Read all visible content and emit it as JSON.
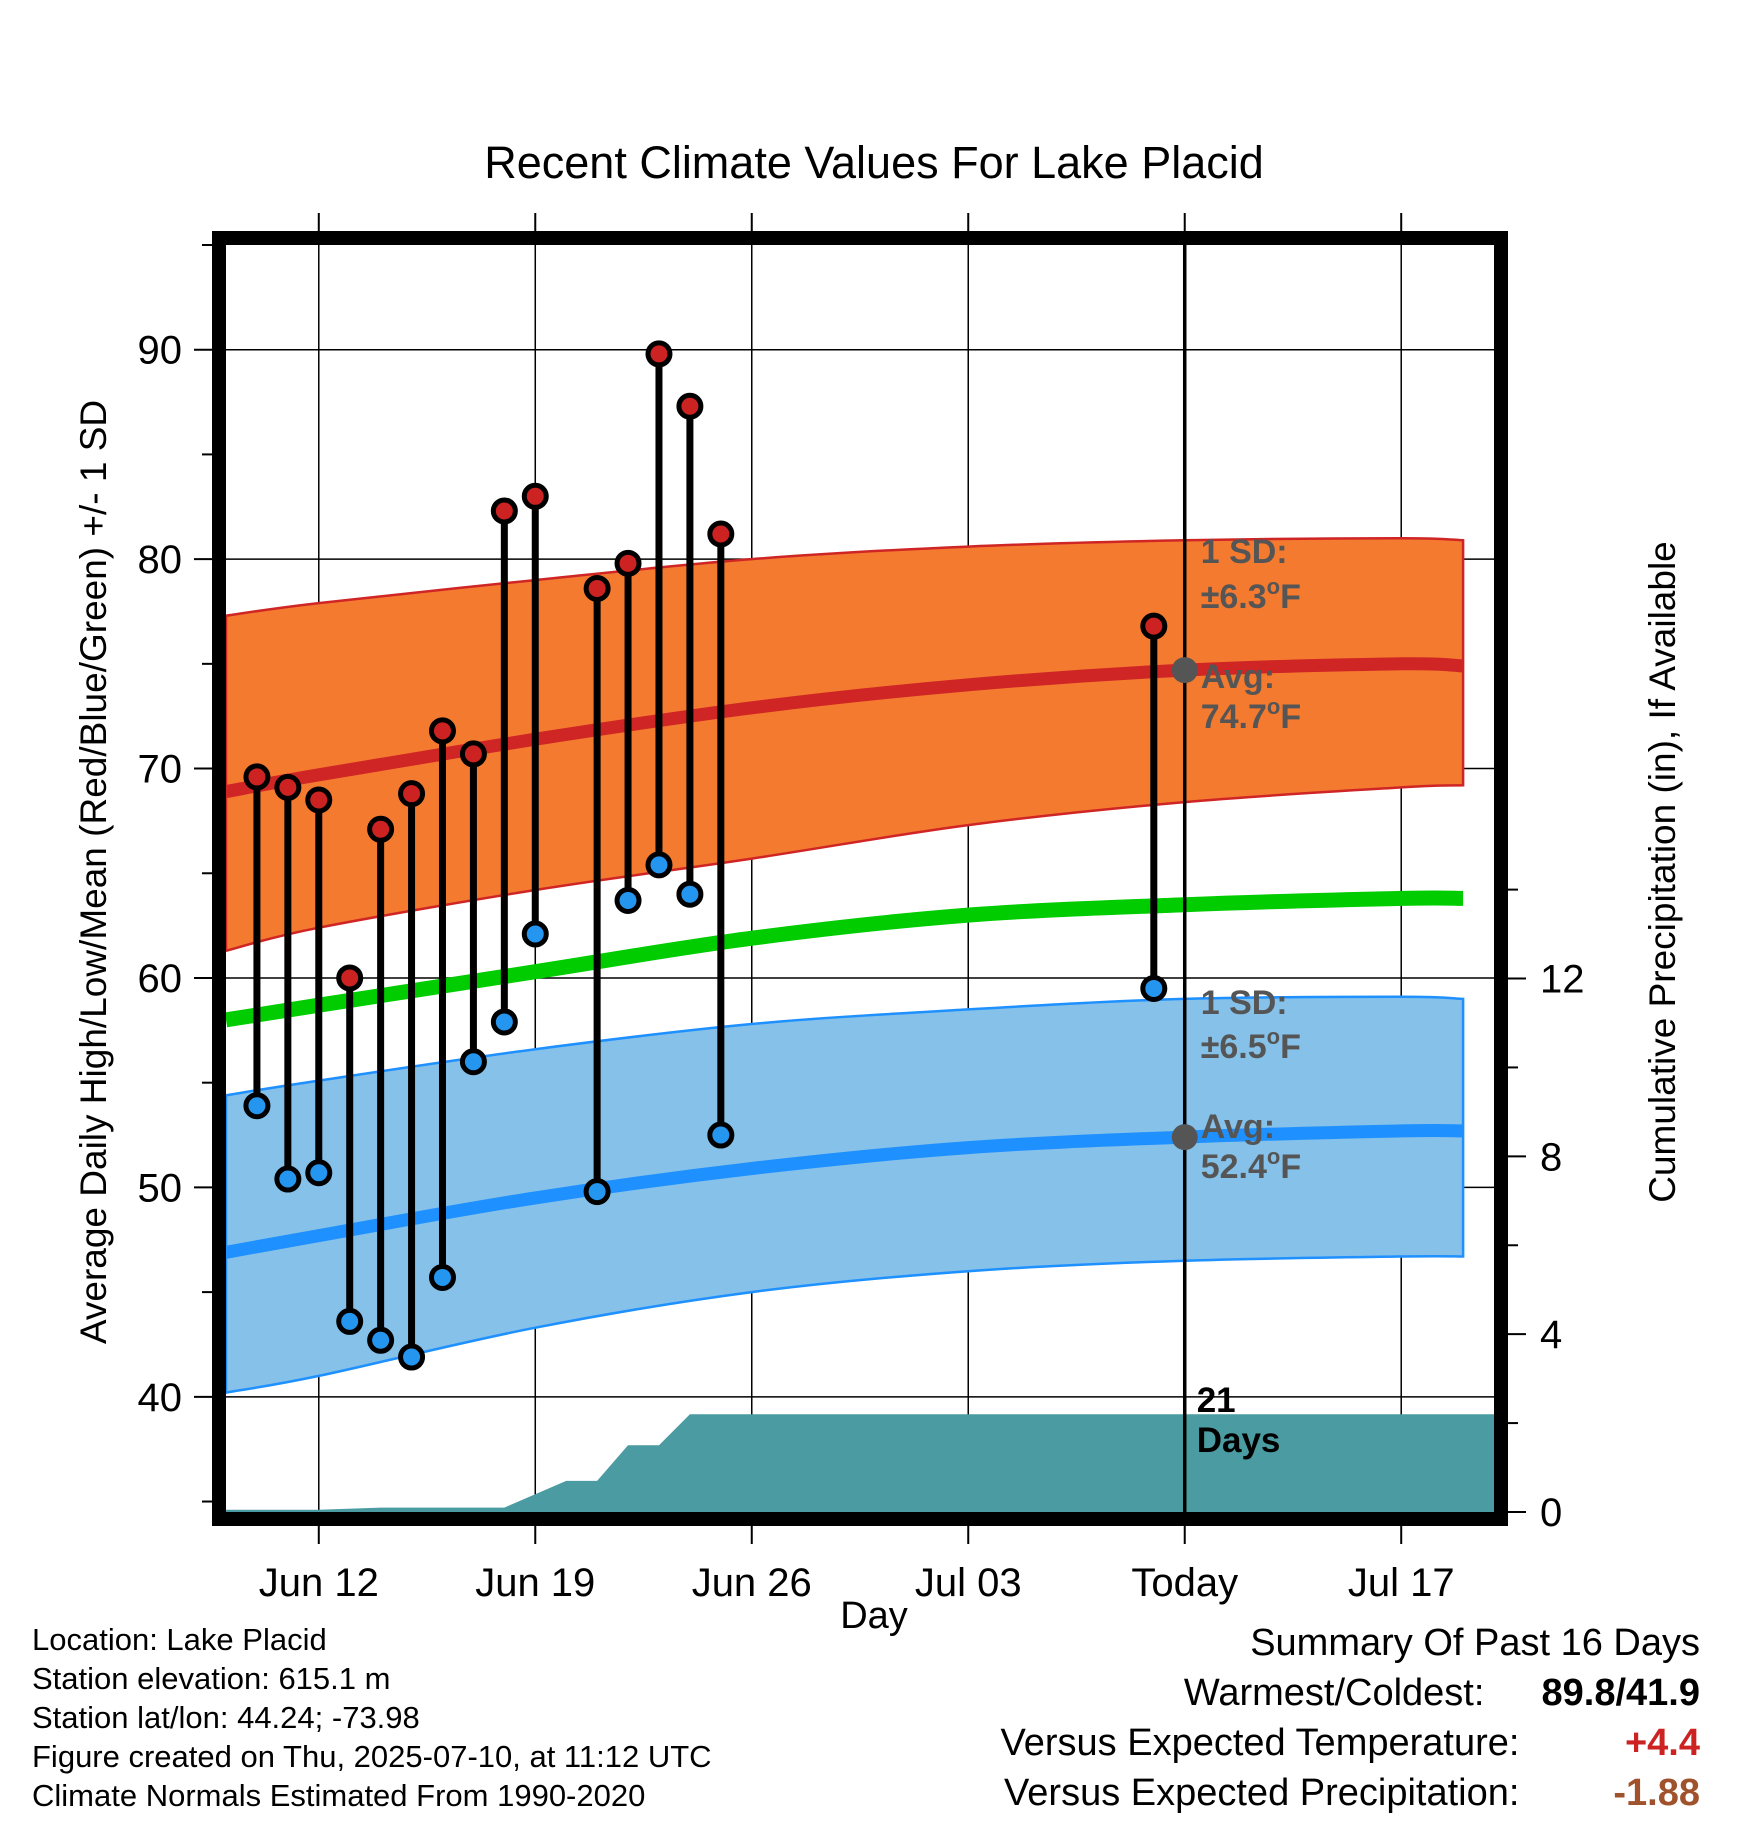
{
  "colors": {
    "high_band": "#f47a30",
    "high_mean": "#cf2525",
    "low_band": "#85c1e9",
    "low_mean": "#1e90ff",
    "avg_mean": "#00cc00",
    "precip": "#4a9ba2",
    "high_dot": "#cc2222",
    "low_dot": "#2596f0",
    "annotation": "#555555",
    "warm": "#cc2222",
    "precip_text": "#a0522d"
  },
  "chart_data": {
    "type": "line",
    "title": "Recent Climate Values For Lake Placid",
    "xlabel": "Day",
    "ylabel": "Average Daily High/Low/Mean (Red/Blue/Green) +/- 1 SD",
    "y2label": "Cumulative Precipitation (in), If Available",
    "xlim": [
      "2025-06-09",
      "2025-07-20"
    ],
    "ylim": [
      34.5,
      95
    ],
    "y2lim": [
      0,
      28.5
    ],
    "yticks": [
      "40",
      "50",
      "60",
      "70",
      "80",
      "90"
    ],
    "y2ticks": [
      "0",
      "4",
      "8",
      "12"
    ],
    "xticks": [
      {
        "date": "2025-06-12",
        "label": "Jun 12"
      },
      {
        "date": "2025-06-19",
        "label": "Jun 19"
      },
      {
        "date": "2025-06-26",
        "label": "Jun 26"
      },
      {
        "date": "2025-07-03",
        "label": "Jul 03"
      },
      {
        "date": "2025-07-10",
        "label": "Today"
      },
      {
        "date": "2025-07-17",
        "label": "Jul 17"
      }
    ],
    "today": "2025-07-10",
    "normals": {
      "dates": [
        "2025-06-09",
        "2025-06-12",
        "2025-06-19",
        "2025-06-26",
        "2025-07-03",
        "2025-07-10",
        "2025-07-17",
        "2025-07-19"
      ],
      "high_mean": [
        68.9,
        69.7,
        71.4,
        72.9,
        74.0,
        74.7,
        75.0,
        74.9
      ],
      "high_upper": [
        77.3,
        77.9,
        79.0,
        80.0,
        80.6,
        80.9,
        81.0,
        80.9
      ],
      "high_lower": [
        61.3,
        62.4,
        64.2,
        65.7,
        67.3,
        68.4,
        69.1,
        69.2
      ],
      "mean": [
        58.0,
        58.7,
        60.3,
        61.9,
        63.0,
        63.5,
        63.8,
        63.8
      ],
      "low_mean": [
        46.9,
        47.7,
        49.5,
        50.9,
        51.9,
        52.4,
        52.7,
        52.7
      ],
      "low_upper": [
        54.4,
        55.1,
        56.6,
        57.8,
        58.5,
        59.0,
        59.1,
        59.0
      ],
      "low_lower": [
        40.2,
        41.0,
        43.3,
        45.0,
        46.0,
        46.5,
        46.7,
        46.7
      ]
    },
    "observed": {
      "dates": [
        "2025-06-10",
        "2025-06-11",
        "2025-06-12",
        "2025-06-13",
        "2025-06-14",
        "2025-06-15",
        "2025-06-16",
        "2025-06-17",
        "2025-06-18",
        "2025-06-19",
        "2025-06-21",
        "2025-06-22",
        "2025-06-23",
        "2025-06-24",
        "2025-06-25",
        "2025-07-09"
      ],
      "high": [
        69.6,
        69.1,
        68.5,
        60.0,
        67.1,
        68.8,
        71.8,
        70.7,
        82.3,
        83.0,
        78.6,
        79.8,
        89.8,
        87.3,
        81.2,
        76.8
      ],
      "low": [
        53.9,
        50.4,
        50.7,
        43.6,
        42.7,
        41.9,
        45.7,
        56.0,
        57.9,
        62.1,
        49.8,
        63.7,
        65.4,
        64.0,
        52.5,
        59.5
      ]
    },
    "precip": {
      "dates": [
        "2025-06-09",
        "2025-06-12",
        "2025-06-14",
        "2025-06-18",
        "2025-06-20",
        "2025-06-21",
        "2025-06-22",
        "2025-06-23",
        "2025-06-24",
        "2025-07-19"
      ],
      "values": [
        0.05,
        0.05,
        0.1,
        0.1,
        0.7,
        0.7,
        1.5,
        1.5,
        2.2,
        2.2
      ]
    },
    "annotations": {
      "high_sd_label": "1 SD:",
      "high_sd_value": "±6.3",
      "high_avg_label": "Avg:",
      "high_avg_value": "74.7",
      "low_sd_label": "1 SD:",
      "low_sd_value": "±6.5",
      "low_avg_label": "Avg:",
      "low_avg_value": "52.4",
      "degree_unit": "o",
      "unit_f": "F",
      "days_number": "21",
      "days_word": "Days"
    }
  },
  "footer": {
    "location": "Location: Lake Placid",
    "elevation": "Station elevation: 615.1 m",
    "latlon": "Station lat/lon: 44.24; -73.98",
    "created": "Figure created on Thu, 2025-07-10, at 11:12 UTC",
    "normals": "Climate Normals Estimated From 1990-2020"
  },
  "summary": {
    "title": "Summary Of Past 16 Days",
    "warmest_label": "Warmest/Coldest:",
    "warmest_value": "89.8/41.9",
    "temp_label": "Versus Expected Temperature:",
    "temp_value": "+4.4",
    "precip_label": "Versus Expected Precipitation:",
    "precip_value": "-1.88"
  }
}
